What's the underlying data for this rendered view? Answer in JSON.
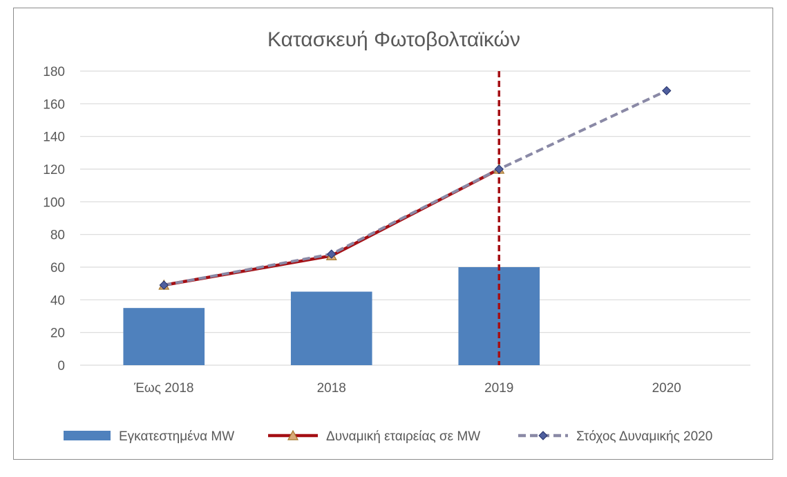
{
  "chart_data": {
    "type": "bar",
    "title": "Κατασκευή Φωτοβολταϊκών",
    "categories": [
      "Έως 2018",
      "2018",
      "2019",
      "2020"
    ],
    "ylim": [
      0,
      180
    ],
    "yticks": [
      0,
      20,
      40,
      60,
      80,
      100,
      120,
      140,
      160,
      180
    ],
    "grid": true,
    "legend_position": "bottom",
    "series": [
      {
        "name": "Εγκατεστημένα MW",
        "type": "bar",
        "color": "#4f81bd",
        "values": [
          35,
          45,
          60,
          null
        ]
      },
      {
        "name": "Δυναμική εταιρείας σε MW",
        "type": "line",
        "color": "#a50f14",
        "marker": "triangle",
        "values": [
          49,
          67,
          120,
          null
        ]
      },
      {
        "name": "Στόχος Δυναμικής 2020",
        "type": "line",
        "color": "#8a89a6",
        "dash": true,
        "marker": "diamond",
        "values": [
          49,
          68,
          120,
          168
        ]
      }
    ],
    "annotations": [
      {
        "type": "vertical-dashed-line",
        "at_category": "2019",
        "color": "#a50f14"
      }
    ]
  }
}
